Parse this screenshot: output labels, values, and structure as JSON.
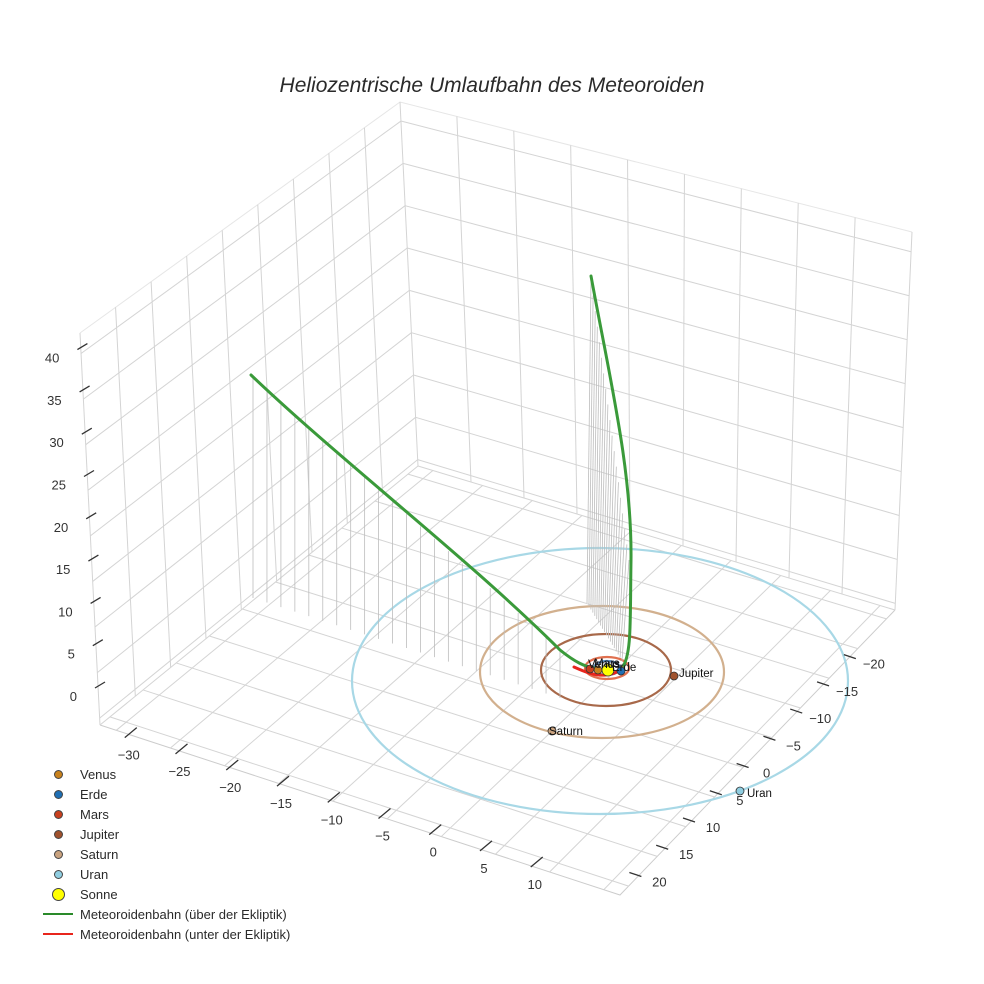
{
  "title": "Heliozentrische Umlaufbahn des Meteoroiden",
  "legend": [
    {
      "label": "Venus",
      "type": "marker",
      "color": "#c8811c"
    },
    {
      "label": "Erde",
      "type": "marker",
      "color": "#1f6fb4"
    },
    {
      "label": "Mars",
      "type": "marker",
      "color": "#c8401e"
    },
    {
      "label": "Jupiter",
      "type": "marker",
      "color": "#a0522d"
    },
    {
      "label": "Saturn",
      "type": "marker",
      "color": "#c9a27e"
    },
    {
      "label": "Uran",
      "type": "marker",
      "color": "#8fcde0"
    },
    {
      "label": "Sonne",
      "type": "marker",
      "color": "#ffff00"
    },
    {
      "label": "Meteoroidenbahn (über der Ekliptik)",
      "type": "line",
      "color": "#2a8a2a"
    },
    {
      "label": "Meteoroidenbahn (unter der Ekliptik)",
      "type": "line",
      "color": "#e8251c"
    }
  ],
  "axes": {
    "x_ticks": [
      "−30",
      "−25",
      "−20",
      "−15",
      "−10",
      "−5",
      "0",
      "5",
      "10"
    ],
    "y_ticks": [
      "−20",
      "−15",
      "−10",
      "−5",
      "0",
      "5",
      "10",
      "15",
      "20"
    ],
    "z_ticks": [
      "0",
      "5",
      "10",
      "15",
      "20",
      "25",
      "30",
      "35",
      "40"
    ]
  },
  "planet_labels": [
    "Venus",
    "Erde",
    "Mars",
    "Jupiter",
    "Saturn",
    "Uran"
  ],
  "chart_data": {
    "type": "scatter3d",
    "title": "Heliozentrische Umlaufbahn des Meteoroiden",
    "xlabel": "",
    "ylabel": "",
    "zlabel": "",
    "xlim": [
      -32,
      12
    ],
    "ylim": [
      -22,
      22
    ],
    "zlim": [
      0,
      42
    ],
    "grid": true,
    "legend_position": "bottom-left",
    "series": [
      {
        "name": "Venus",
        "kind": "marker+orbit",
        "orbit_radius_au": 0.72,
        "color": "#c8811c"
      },
      {
        "name": "Erde",
        "kind": "marker+orbit",
        "orbit_radius_au": 1.0,
        "color": "#1f6fb4"
      },
      {
        "name": "Mars",
        "kind": "marker+orbit",
        "orbit_radius_au": 1.52,
        "color": "#c8401e"
      },
      {
        "name": "Jupiter",
        "kind": "marker+orbit",
        "orbit_radius_au": 5.2,
        "color": "#a0522d"
      },
      {
        "name": "Saturn",
        "kind": "marker+orbit",
        "orbit_radius_au": 9.5,
        "color": "#c9a27e"
      },
      {
        "name": "Uran",
        "kind": "marker+orbit",
        "orbit_radius_au": 19.2,
        "color": "#8fcde0"
      },
      {
        "name": "Sonne",
        "kind": "marker",
        "x": 0,
        "y": 0,
        "z": 0,
        "color": "#ffff00"
      },
      {
        "name": "Meteoroidenbahn (über der Ekliptik)",
        "kind": "line",
        "color": "#2a8a2a",
        "branches": [
          {
            "from": [
              -1,
              0,
              0
            ],
            "to": [
              -31,
              -2,
              35
            ]
          },
          {
            "from": [
              0.5,
              -1,
              0
            ],
            "to": [
              -8,
              -20,
              38
            ]
          }
        ]
      },
      {
        "name": "Meteoroidenbahn (unter der Ekliptik)",
        "kind": "line",
        "color": "#e8251c",
        "points_desc": "short segment near perihelion, z slightly below 0"
      }
    ]
  }
}
